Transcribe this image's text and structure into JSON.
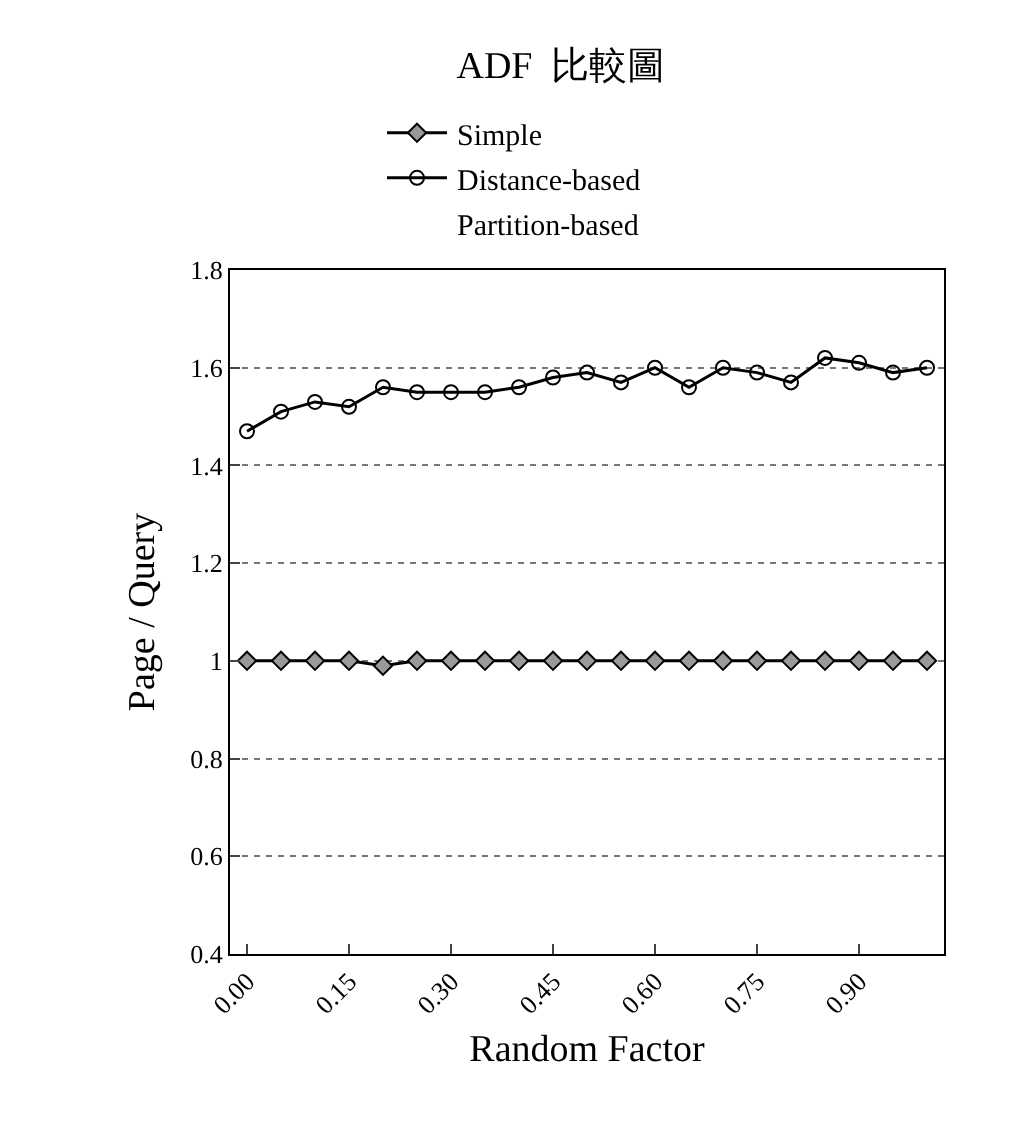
{
  "chart_data": {
    "type": "line",
    "title": "ADF  比較圖",
    "xlabel": "Random Factor",
    "ylabel": "Page / Query",
    "categories": [
      "0.00",
      null,
      null,
      "0.15",
      null,
      null,
      "0.30",
      null,
      null,
      "0.45",
      null,
      null,
      "0.60",
      null,
      null,
      "0.75",
      null,
      null,
      "0.90",
      null,
      null
    ],
    "series": [
      {
        "name": "Simple",
        "color": "#000000",
        "marker": "diamond",
        "values": [
          1,
          1,
          1,
          1,
          0.99,
          1,
          1,
          1,
          1,
          1,
          1,
          1,
          1,
          1,
          1,
          1,
          1,
          1,
          1,
          1,
          1
        ]
      },
      {
        "name": "Distance-based",
        "color": "#000000",
        "marker": "circle",
        "values": [
          1.47,
          1.51,
          1.53,
          1.52,
          1.56,
          1.55,
          1.55,
          1.55,
          1.56,
          1.58,
          1.59,
          1.57,
          1.6,
          1.56,
          1.6,
          1.59,
          1.57,
          1.62,
          1.61,
          1.59,
          1.6
        ]
      },
      {
        "name": "Partition-based",
        "marker": "none",
        "values": [
          null,
          null,
          null,
          null,
          null,
          null,
          null,
          null,
          null,
          null,
          null,
          null,
          null,
          null,
          null,
          null,
          null,
          null,
          null,
          null,
          null
        ]
      }
    ],
    "ylim": [
      0.4,
      1.8
    ],
    "yticks": [
      0.4,
      0.6,
      0.8,
      {
        "value": 1,
        "label": "1"
      },
      1.2,
      1.4,
      1.6,
      1.8
    ],
    "grid": "y",
    "legend": "top"
  }
}
